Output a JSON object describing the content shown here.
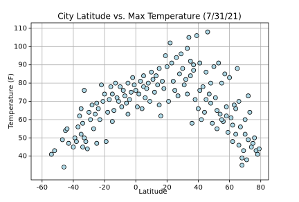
{
  "chart_data": {
    "type": "scatter",
    "title": "City Latitude vs. Max Temperature (7/31/21)",
    "x_label": "Latitude",
    "y_label": "Temperature (F)",
    "color": "lightblue",
    "edgecolor": "#000000",
    "grid": true,
    "xlim": [
      -67,
      85
    ],
    "ylim": [
      27,
      113
    ],
    "xticks": [
      -60,
      -40,
      -20,
      0,
      20,
      40,
      60,
      80
    ],
    "yticks": [
      40,
      50,
      60,
      70,
      80,
      90,
      100,
      110
    ],
    "x": [
      -54,
      -52,
      -47,
      -46,
      -45,
      -44,
      -43,
      -40,
      -39,
      -38,
      -37,
      -36,
      -35,
      -35,
      -34,
      -34,
      -33,
      -33,
      -32,
      -31,
      -30,
      -29,
      -28,
      -27,
      -26,
      -25,
      -24,
      -23,
      -22,
      -21,
      -20,
      -19,
      -18,
      -17,
      -16,
      -15,
      -14,
      -13,
      -12,
      -11,
      -10,
      -9,
      -8,
      -7,
      -6,
      -5,
      -4,
      -3,
      -2,
      -1,
      0,
      1,
      2,
      3,
      4,
      5,
      6,
      7,
      8,
      9,
      10,
      11,
      12,
      13,
      14,
      15,
      16,
      17,
      18,
      19,
      20,
      21,
      22,
      23,
      24,
      25,
      26,
      27,
      28,
      29,
      30,
      31,
      32,
      33,
      34,
      35,
      36,
      37,
      38,
      39,
      40,
      41,
      42,
      43,
      44,
      45,
      46,
      47,
      48,
      49,
      50,
      51,
      52,
      53,
      54,
      55,
      56,
      57,
      58,
      59,
      60,
      61,
      62,
      63,
      64,
      65,
      66,
      67,
      68,
      69,
      70,
      71,
      72,
      73,
      74,
      75,
      76,
      77,
      78,
      79,
      33,
      35,
      37,
      41,
      45,
      48,
      52,
      55,
      58,
      62,
      64,
      66,
      68,
      70,
      72,
      -25,
      -15,
      -5,
      5,
      15
    ],
    "values": [
      41,
      43,
      49,
      34,
      54,
      55,
      47,
      45,
      50,
      48,
      56,
      62,
      66,
      52,
      45,
      58,
      76,
      50,
      48,
      44,
      64,
      60,
      68,
      55,
      63,
      47,
      66,
      60,
      79,
      70,
      74,
      48,
      64,
      71,
      78,
      59,
      65,
      80,
      72,
      70,
      78,
      67,
      76,
      73,
      69,
      80,
      71,
      75,
      83,
      79,
      76,
      67,
      74,
      81,
      66,
      78,
      72,
      77,
      80,
      70,
      86,
      82,
      75,
      84,
      79,
      88,
      62,
      81,
      77,
      95,
      89,
      70,
      102,
      91,
      81,
      76,
      94,
      73,
      85,
      96,
      88,
      79,
      82,
      74,
      105,
      92,
      58,
      87,
      71,
      106,
      66,
      91,
      60,
      78,
      64,
      86,
      108,
      74,
      69,
      58,
      89,
      72,
      55,
      91,
      63,
      80,
      59,
      85,
      67,
      53,
      83,
      61,
      48,
      68,
      52,
      88,
      46,
      56,
      39,
      43,
      60,
      38,
      49,
      64,
      45,
      47,
      50,
      43,
      41,
      44,
      99,
      84,
      90,
      76,
      71,
      80,
      65,
      60,
      62,
      57,
      66,
      70,
      35,
      52,
      73,
      69,
      74,
      63,
      84,
      68
    ]
  }
}
